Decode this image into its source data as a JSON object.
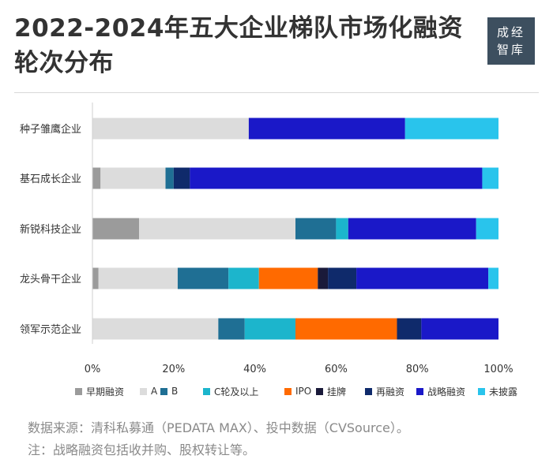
{
  "title_line1": "2022-2024年五大企业梯队市场化融资",
  "title_line2": "轮次分布",
  "logo": {
    "line1": "成经",
    "line2": "智库"
  },
  "source": "数据来源：清科私募通（PEDATA MAX）、投中数据（CVSource）。",
  "note": "注：战略融资包括收并购、股权转让等。",
  "chart_data": {
    "type": "bar",
    "orientation": "horizontal",
    "stacked": "percent",
    "title": "2022-2024年五大企业梯队市场化融资轮次分布",
    "categories": [
      "种子雏鹰企业",
      "基石成长企业",
      "新锐科技企业",
      "龙头骨干企业",
      "领军示范企业"
    ],
    "series": [
      {
        "name": "早期融资",
        "color": "#9b9b9b",
        "values": [
          0,
          2,
          11.5,
          1.5,
          0
        ]
      },
      {
        "name": "A",
        "color": "#dcdcdc",
        "values": [
          38.5,
          16,
          38.5,
          19.5,
          31
        ]
      },
      {
        "name": "B",
        "color": "#1f6f94",
        "values": [
          0,
          2,
          10,
          12.5,
          6.5
        ]
      },
      {
        "name": "C轮及以上",
        "color": "#1cb5cc",
        "values": [
          0,
          0,
          3,
          7.5,
          12.5
        ]
      },
      {
        "name": "IPO",
        "color": "#ff6a00",
        "values": [
          0,
          0,
          0,
          14.5,
          25
        ]
      },
      {
        "name": "挂牌",
        "color": "#1a1a3a",
        "values": [
          0,
          0,
          0,
          2.5,
          0
        ]
      },
      {
        "name": "再融资",
        "color": "#0f2a6b",
        "values": [
          0,
          4,
          0,
          7,
          6
        ]
      },
      {
        "name": "战略融资",
        "color": "#1a18c8",
        "values": [
          38.5,
          72,
          31.5,
          32.5,
          19
        ]
      },
      {
        "name": "未披露",
        "color": "#29c4ec",
        "values": [
          23,
          4,
          5.5,
          2.5,
          0
        ]
      }
    ],
    "xlim": [
      0,
      100
    ],
    "xticks": [
      "0%",
      "20%",
      "40%",
      "60%",
      "80%",
      "100%"
    ],
    "grid": false,
    "legend_position": "bottom"
  }
}
